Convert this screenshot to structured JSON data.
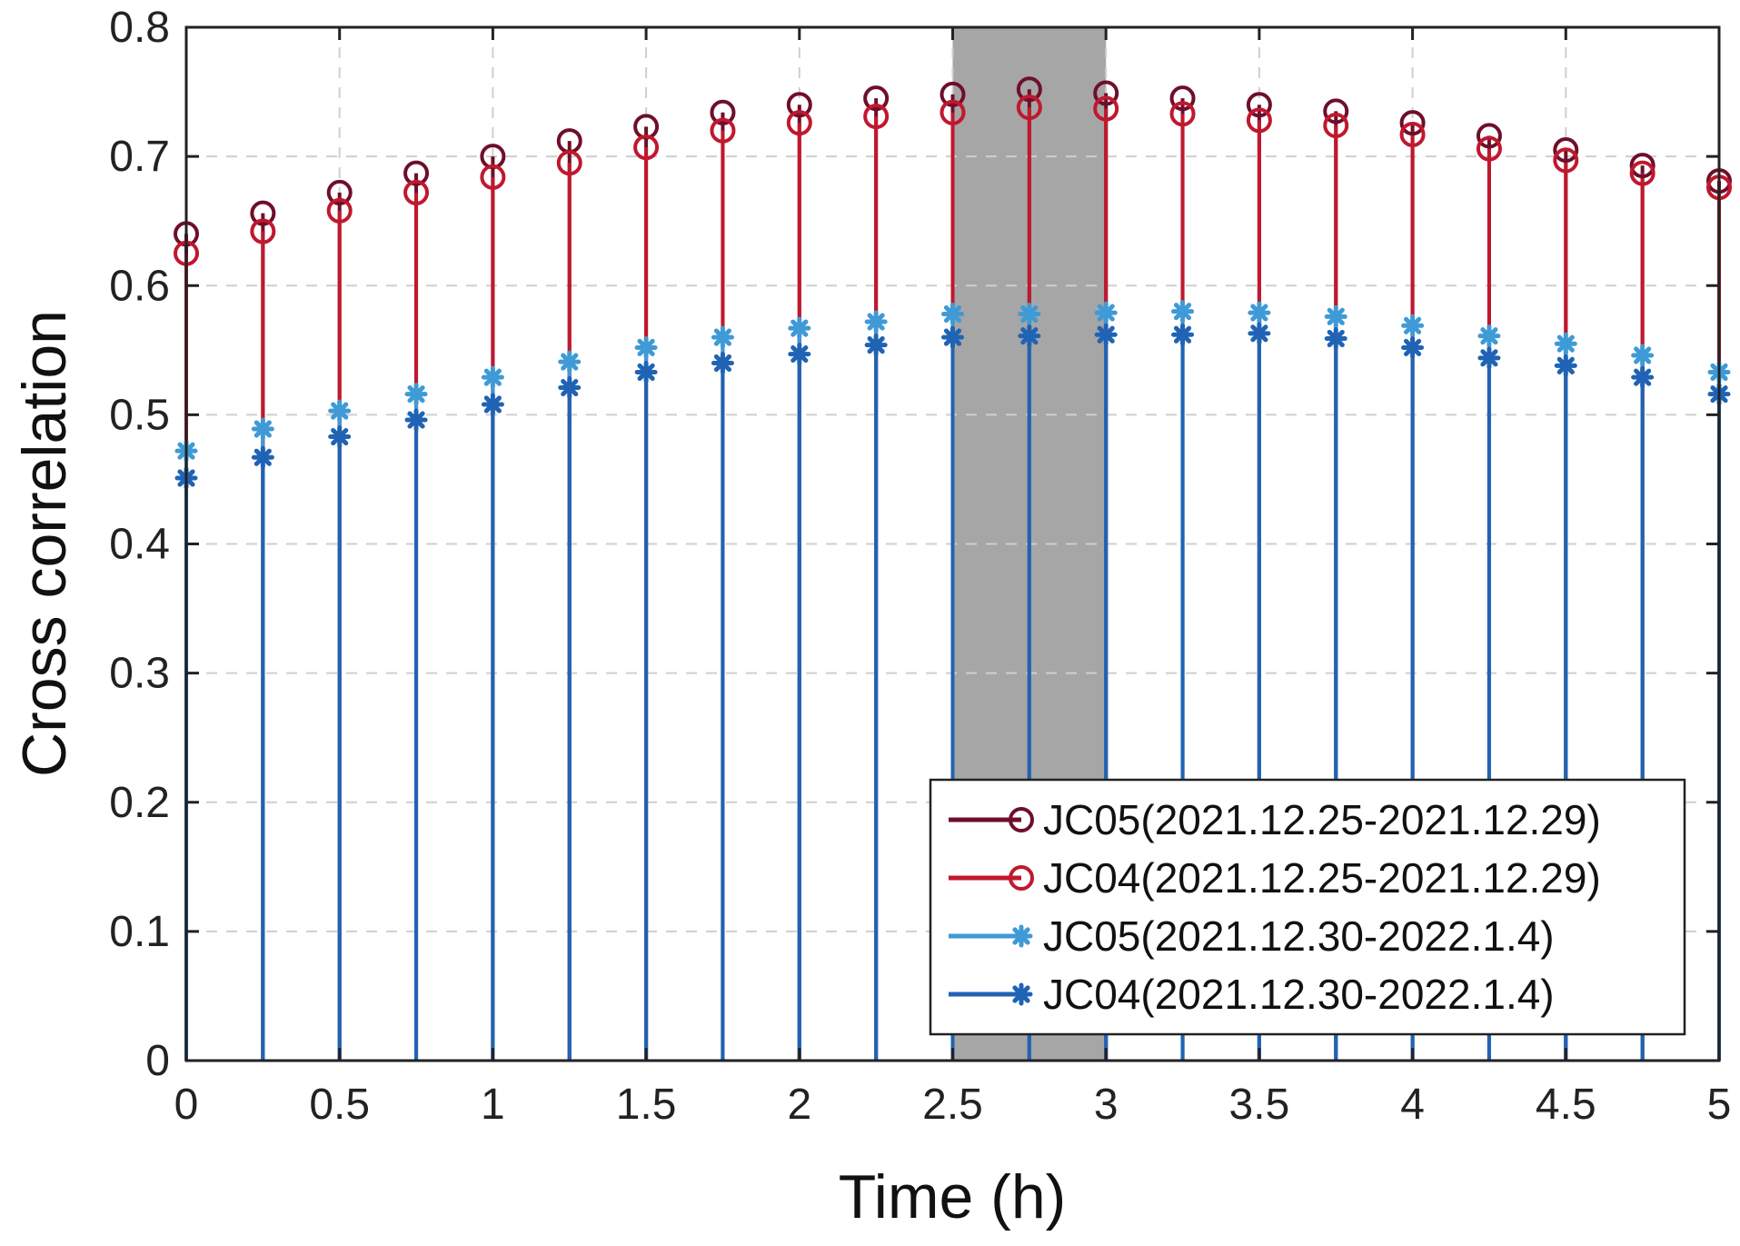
{
  "chart_data": {
    "type": "stem",
    "title": "",
    "xlabel": "Time (h)",
    "ylabel": "Cross correlation",
    "xlim": [
      0,
      5
    ],
    "ylim": [
      0,
      0.8
    ],
    "xticks": [
      0,
      0.5,
      1,
      1.5,
      2,
      2.5,
      3,
      3.5,
      4,
      4.5,
      5
    ],
    "xtick_labels": [
      "0",
      "0.5",
      "1",
      "1.5",
      "2",
      "2.5",
      "3",
      "3.5",
      "4",
      "4.5",
      "5"
    ],
    "yticks": [
      0,
      0.1,
      0.2,
      0.3,
      0.4,
      0.5,
      0.6,
      0.7,
      0.8
    ],
    "ytick_labels": [
      "0",
      "0.1",
      "0.2",
      "0.3",
      "0.4",
      "0.5",
      "0.6",
      "0.7",
      "0.8"
    ],
    "grid": true,
    "legend_position": "bottom-right",
    "highlight_band": {
      "x_start": 2.5,
      "x_end": 3.0,
      "color": "#a6a6a6"
    },
    "x": [
      0,
      0.25,
      0.5,
      0.75,
      1,
      1.25,
      1.5,
      1.75,
      2,
      2.25,
      2.5,
      2.75,
      3,
      3.25,
      3.5,
      3.75,
      4,
      4.25,
      4.5,
      4.75,
      5
    ],
    "series": [
      {
        "name": "JC05(2021.12.25-2021.12.29)",
        "color": "#6e0f2a",
        "marker": "circle",
        "values": [
          0.64,
          0.656,
          0.672,
          0.687,
          0.7,
          0.712,
          0.723,
          0.734,
          0.74,
          0.745,
          0.748,
          0.752,
          0.749,
          0.745,
          0.74,
          0.735,
          0.726,
          0.716,
          0.705,
          0.693,
          0.681
        ]
      },
      {
        "name": "JC04(2021.12.25-2021.12.29)",
        "color": "#c0182e",
        "marker": "circle",
        "values": [
          0.625,
          0.642,
          0.658,
          0.672,
          0.684,
          0.695,
          0.707,
          0.72,
          0.726,
          0.731,
          0.734,
          0.738,
          0.737,
          0.733,
          0.728,
          0.724,
          0.717,
          0.706,
          0.697,
          0.687,
          0.676
        ]
      },
      {
        "name": "JC05(2021.12.30-2022.1.4)",
        "color": "#3f9ad6",
        "marker": "asterisk",
        "values": [
          0.472,
          0.489,
          0.503,
          0.516,
          0.529,
          0.541,
          0.552,
          0.56,
          0.567,
          0.572,
          0.578,
          0.578,
          0.579,
          0.58,
          0.579,
          0.576,
          0.569,
          0.561,
          0.555,
          0.546,
          0.533
        ]
      },
      {
        "name": "JC04(2021.12.30-2022.1.4)",
        "color": "#2063b4",
        "marker": "asterisk",
        "values": [
          0.451,
          0.467,
          0.483,
          0.496,
          0.508,
          0.521,
          0.533,
          0.54,
          0.547,
          0.554,
          0.56,
          0.561,
          0.562,
          0.562,
          0.563,
          0.559,
          0.552,
          0.544,
          0.538,
          0.529,
          0.516
        ]
      }
    ]
  }
}
